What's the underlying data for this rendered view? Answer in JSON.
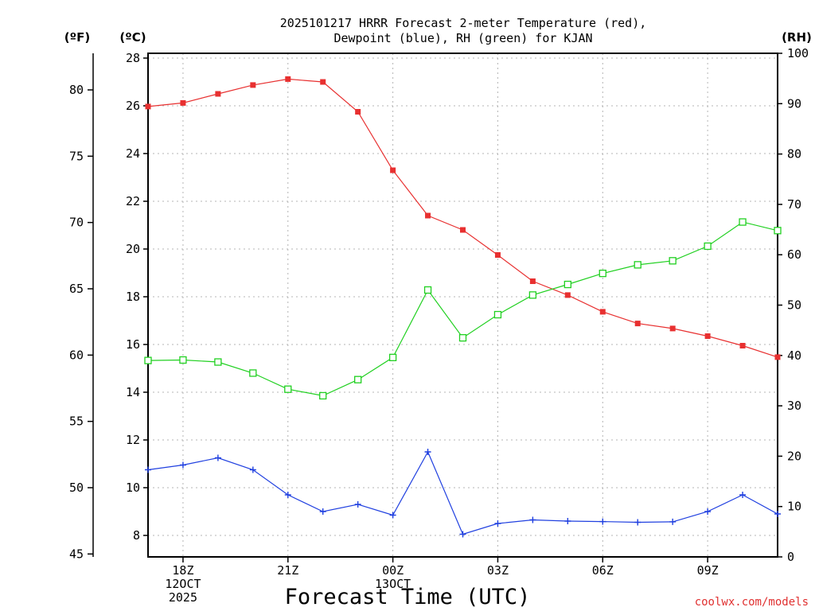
{
  "chart_data": {
    "type": "line",
    "title_lines": [
      "2025101217 HRRR Forecast 2-meter Temperature (red),",
      "Dewpoint (blue), RH (green) for KJAN"
    ],
    "xlabel": "Forecast Time (UTC)",
    "credit": "coolwx.com/models",
    "unit_labels": {
      "f": "(ºF)",
      "c": "(ºC)",
      "rh": "(RH)"
    },
    "x_hours": [
      17,
      18,
      19,
      20,
      21,
      22,
      23,
      24,
      25,
      26,
      27,
      28,
      29,
      30,
      31,
      32,
      33,
      34,
      35
    ],
    "xlim": [
      17,
      35
    ],
    "x_ticks": [
      {
        "hour": 18,
        "lines": [
          "18Z",
          "12OCT",
          "2025"
        ]
      },
      {
        "hour": 21,
        "lines": [
          "21Z"
        ]
      },
      {
        "hour": 24,
        "lines": [
          "00Z",
          "13OCT"
        ]
      },
      {
        "hour": 27,
        "lines": [
          "03Z"
        ]
      },
      {
        "hour": 30,
        "lines": [
          "06Z"
        ]
      },
      {
        "hour": 33,
        "lines": [
          "09Z"
        ]
      }
    ],
    "c_axis": {
      "lim": [
        7.1,
        28.2
      ],
      "ticks": [
        8,
        10,
        12,
        14,
        16,
        18,
        20,
        22,
        24,
        26,
        28
      ]
    },
    "f_axis": {
      "lim": [
        44.78,
        82.76
      ],
      "ticks": [
        45,
        50,
        55,
        60,
        65,
        70,
        75,
        80
      ]
    },
    "rh_axis": {
      "lim": [
        0,
        100
      ],
      "ticks": [
        0,
        10,
        20,
        30,
        40,
        50,
        60,
        70,
        80,
        90,
        100
      ]
    },
    "series": [
      {
        "name": "Temperature",
        "axis": "c",
        "color": "#e83030",
        "marker": "filled-square",
        "values": [
          25.97,
          26.12,
          26.5,
          26.87,
          27.12,
          27.0,
          25.75,
          23.3,
          21.4,
          20.8,
          19.75,
          18.65,
          18.07,
          17.37,
          16.88,
          16.67,
          16.35,
          15.95,
          15.47
        ]
      },
      {
        "name": "Dewpoint",
        "axis": "c",
        "color": "#2040e0",
        "marker": "plus",
        "values": [
          10.75,
          10.95,
          11.25,
          10.75,
          9.7,
          9.0,
          9.3,
          8.85,
          11.5,
          8.05,
          8.5,
          8.65,
          8.6,
          8.58,
          8.55,
          8.57,
          9.0,
          9.7,
          8.9
        ]
      },
      {
        "name": "RH",
        "axis": "rh",
        "color": "#20d020",
        "marker": "open-square",
        "values": [
          39.0,
          39.1,
          38.7,
          36.5,
          33.3,
          32.0,
          35.2,
          39.6,
          53.0,
          43.5,
          48.1,
          52.0,
          54.1,
          56.3,
          58.0,
          58.8,
          61.7,
          66.5,
          64.8
        ]
      }
    ]
  }
}
